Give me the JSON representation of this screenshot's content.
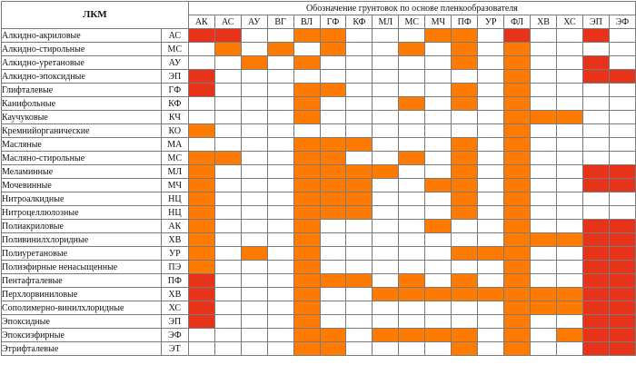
{
  "lkm_header": "ЛКМ",
  "top_header": "Обозначение грунтовок по основе пленкообразователя",
  "colors": {
    "red": "#e8331b",
    "orange": "#ff7a00",
    "light_orange": "#ff9f10"
  },
  "columns": [
    "АК",
    "АС",
    "АУ",
    "ВГ",
    "ВЛ",
    "ГФ",
    "КФ",
    "МЛ",
    "МС",
    "МЧ",
    "ПФ",
    "УР",
    "ФЛ",
    "ХВ",
    "ХС",
    "ЭП",
    "ЭФ"
  ],
  "rows": [
    {
      "name": "Алкидно-акриловые",
      "code": "АС",
      "cells": [
        1,
        1,
        0,
        0,
        2,
        2,
        0,
        0,
        0,
        2,
        2,
        0,
        1,
        0,
        0,
        1,
        0
      ]
    },
    {
      "name": "Алкидно-стирольные",
      "code": "МС",
      "cells": [
        0,
        2,
        0,
        2,
        0,
        2,
        0,
        0,
        2,
        0,
        2,
        0,
        2,
        0,
        0,
        0,
        0
      ]
    },
    {
      "name": "Алкидно-уретановые",
      "code": "АУ",
      "cells": [
        0,
        0,
        2,
        0,
        2,
        0,
        0,
        0,
        0,
        0,
        2,
        0,
        2,
        0,
        0,
        1,
        0
      ]
    },
    {
      "name": "Алкидно-эпоксидные",
      "code": "ЭП",
      "cells": [
        1,
        0,
        0,
        0,
        0,
        0,
        0,
        0,
        0,
        0,
        0,
        0,
        2,
        0,
        0,
        1,
        1
      ]
    },
    {
      "name": "Глифталевые",
      "code": "ГФ",
      "cells": [
        1,
        0,
        0,
        0,
        2,
        2,
        0,
        0,
        0,
        0,
        2,
        0,
        2,
        0,
        0,
        0,
        0
      ]
    },
    {
      "name": "Канифольные",
      "code": "КФ",
      "cells": [
        0,
        0,
        0,
        0,
        2,
        0,
        0,
        0,
        2,
        0,
        2,
        0,
        2,
        0,
        0,
        0,
        0
      ]
    },
    {
      "name": "Каучуковые",
      "code": "КЧ",
      "cells": [
        0,
        0,
        0,
        0,
        2,
        0,
        0,
        0,
        0,
        0,
        0,
        0,
        2,
        2,
        2,
        0,
        0
      ]
    },
    {
      "name": "Кремнийорганические",
      "code": "КО",
      "cells": [
        2,
        0,
        0,
        0,
        0,
        0,
        0,
        0,
        0,
        0,
        0,
        0,
        2,
        0,
        0,
        0,
        0
      ]
    },
    {
      "name": "Масляные",
      "code": "МА",
      "cells": [
        0,
        0,
        0,
        0,
        2,
        2,
        2,
        0,
        0,
        0,
        2,
        0,
        2,
        0,
        0,
        0,
        0
      ]
    },
    {
      "name": "Масляно-стирольные",
      "code": "МС",
      "cells": [
        2,
        2,
        0,
        0,
        2,
        2,
        0,
        0,
        2,
        0,
        2,
        0,
        2,
        0,
        0,
        0,
        0
      ]
    },
    {
      "name": "Меламинные",
      "code": "МЛ",
      "cells": [
        2,
        0,
        0,
        0,
        2,
        2,
        2,
        2,
        0,
        0,
        2,
        0,
        2,
        0,
        0,
        1,
        1
      ]
    },
    {
      "name": "Мочевинные",
      "code": "МЧ",
      "cells": [
        2,
        0,
        0,
        0,
        2,
        2,
        2,
        0,
        0,
        2,
        2,
        0,
        2,
        0,
        0,
        1,
        1
      ]
    },
    {
      "name": "Нитроалкидные",
      "code": "НЦ",
      "cells": [
        2,
        0,
        0,
        0,
        2,
        2,
        2,
        0,
        0,
        0,
        2,
        0,
        2,
        0,
        0,
        0,
        0
      ]
    },
    {
      "name": "Нитроцеллюлозные",
      "code": "НЦ",
      "cells": [
        2,
        0,
        0,
        0,
        2,
        2,
        2,
        0,
        0,
        0,
        2,
        0,
        2,
        0,
        0,
        0,
        0
      ]
    },
    {
      "name": "Полиакриловые",
      "code": "АК",
      "cells": [
        2,
        0,
        0,
        0,
        2,
        0,
        0,
        0,
        0,
        2,
        0,
        0,
        2,
        0,
        0,
        1,
        1
      ]
    },
    {
      "name": "Поливинилхлоридные",
      "code": "ХВ",
      "cells": [
        2,
        0,
        0,
        0,
        2,
        0,
        0,
        0,
        0,
        0,
        0,
        0,
        2,
        2,
        2,
        1,
        1
      ]
    },
    {
      "name": "Полиуретановые",
      "code": "УР",
      "cells": [
        2,
        0,
        2,
        0,
        2,
        0,
        0,
        0,
        0,
        0,
        2,
        2,
        2,
        0,
        0,
        1,
        1
      ]
    },
    {
      "name": "Полиэфирные ненасыщенные",
      "code": "ПЭ",
      "cells": [
        2,
        0,
        0,
        0,
        2,
        0,
        0,
        0,
        0,
        0,
        0,
        0,
        2,
        0,
        0,
        1,
        1
      ]
    },
    {
      "name": "Пентафталевые",
      "code": "ПФ",
      "cells": [
        1,
        0,
        0,
        0,
        2,
        2,
        2,
        0,
        2,
        0,
        2,
        0,
        2,
        0,
        0,
        1,
        1
      ]
    },
    {
      "name": "Перхлорвиниловые",
      "code": "ХВ",
      "cells": [
        1,
        0,
        0,
        0,
        2,
        0,
        0,
        2,
        2,
        2,
        2,
        2,
        2,
        2,
        2,
        1,
        1
      ]
    },
    {
      "name": "Сополимерно-винилхлоридные",
      "code": "ХС",
      "cells": [
        1,
        0,
        0,
        0,
        2,
        0,
        0,
        0,
        0,
        0,
        0,
        0,
        2,
        2,
        2,
        1,
        1
      ]
    },
    {
      "name": "Эпоксидные",
      "code": "ЭП",
      "cells": [
        1,
        0,
        0,
        0,
        2,
        0,
        0,
        0,
        0,
        0,
        0,
        0,
        2,
        0,
        0,
        1,
        1
      ]
    },
    {
      "name": "Эпоксиэфирные",
      "code": "ЭФ",
      "cells": [
        0,
        0,
        0,
        0,
        2,
        2,
        0,
        2,
        2,
        2,
        2,
        0,
        2,
        0,
        2,
        1,
        1
      ]
    },
    {
      "name": "Этрифталевые",
      "code": "ЭТ",
      "cells": [
        0,
        0,
        0,
        0,
        2,
        2,
        0,
        0,
        0,
        0,
        2,
        0,
        2,
        0,
        0,
        1,
        1
      ]
    }
  ]
}
